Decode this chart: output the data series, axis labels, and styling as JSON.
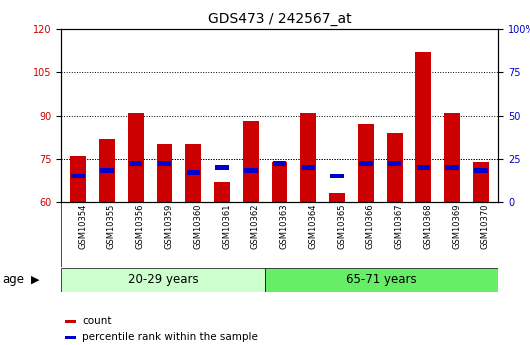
{
  "title": "GDS473 / 242567_at",
  "samples": [
    "GSM10354",
    "GSM10355",
    "GSM10356",
    "GSM10359",
    "GSM10360",
    "GSM10361",
    "GSM10362",
    "GSM10363",
    "GSM10364",
    "GSM10365",
    "GSM10366",
    "GSM10367",
    "GSM10368",
    "GSM10369",
    "GSM10370"
  ],
  "count_values": [
    76,
    82,
    91,
    80,
    80,
    67,
    88,
    74,
    91,
    63,
    87,
    84,
    112,
    91,
    74
  ],
  "percentile_values": [
    15,
    18,
    22,
    22,
    17,
    20,
    18,
    22,
    20,
    15,
    22,
    22,
    20,
    20,
    18
  ],
  "group1_samples": 7,
  "group2_samples": 8,
  "group1_label": "20-29 years",
  "group2_label": "65-71 years",
  "group1_color": "#ccffcc",
  "group2_color": "#66ee66",
  "bar_color_count": "#cc0000",
  "bar_color_pct": "#0000cc",
  "ylim_left": [
    60,
    120
  ],
  "yticks_left": [
    60,
    75,
    90,
    105,
    120
  ],
  "ylim_right": [
    0,
    100
  ],
  "yticks_right": [
    0,
    25,
    50,
    75,
    100
  ],
  "grid_values": [
    75,
    90,
    105
  ],
  "background_color": "#ffffff",
  "plot_bg_color": "#ffffff",
  "age_label": "age",
  "legend_count": "count",
  "legend_pct": "percentile rank within the sample",
  "title_fontsize": 10,
  "tick_fontsize": 7,
  "label_fontsize": 8.5
}
